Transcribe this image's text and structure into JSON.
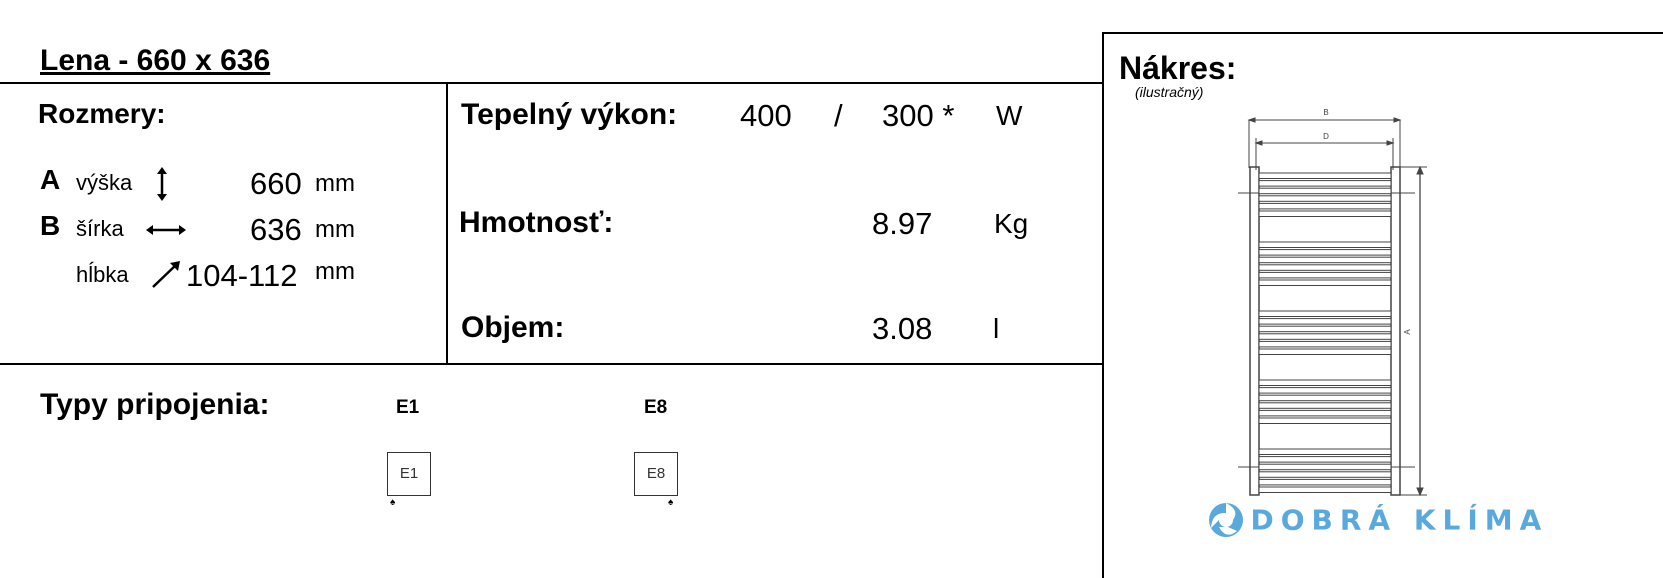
{
  "title": "Lena - 660 x 636",
  "dimensions": {
    "heading": "Rozmery:",
    "rows": [
      {
        "letter": "A",
        "label": "výška",
        "icon": "vertical-arrow-icon",
        "value": "660",
        "unit": "mm"
      },
      {
        "letter": "B",
        "label": "šírka",
        "icon": "horizontal-arrow-icon",
        "value": "636",
        "unit": "mm"
      },
      {
        "letter": "",
        "label": "hĺbka",
        "icon": "diagonal-arrow-icon",
        "value": "104-112",
        "unit": "mm"
      }
    ]
  },
  "specs": {
    "power_label": "Tepelný výkon:",
    "power_value1": "400",
    "power_sep": "/",
    "power_value2": "300 *",
    "power_unit": "W",
    "weight_label": "Hmotnosť:",
    "weight_value": "8.97",
    "weight_unit": "Kg",
    "volume_label": "Objem:",
    "volume_value": "3.08",
    "volume_unit": "l"
  },
  "connections": {
    "heading": "Typy pripojenia:",
    "types": [
      {
        "label": "E1",
        "box": "E1"
      },
      {
        "label": "E8",
        "box": "E8"
      }
    ]
  },
  "drawing": {
    "heading": "Nákres:",
    "subheading": "(ilustračný)",
    "dim_b": "B",
    "dim_d": "D",
    "dim_a": "A"
  },
  "logo": {
    "text": "DOBRÁ KLÍMA",
    "color": "#5aa9dd"
  }
}
